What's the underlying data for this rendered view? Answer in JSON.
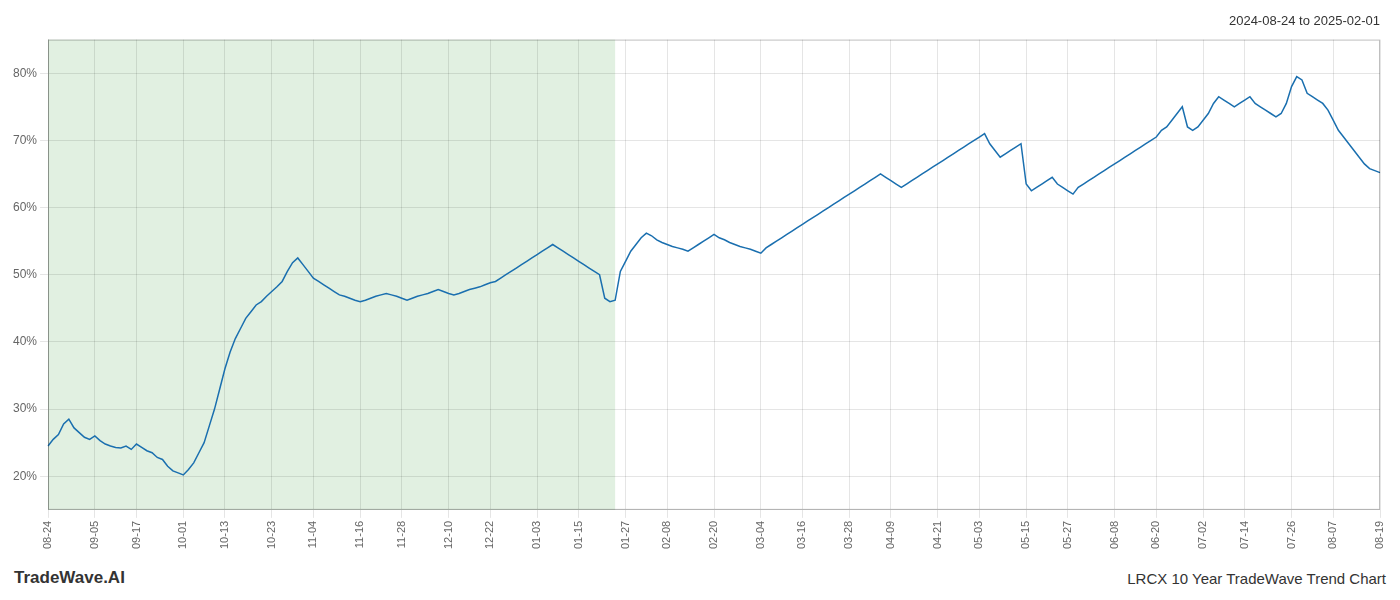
{
  "chart_data": {
    "type": "line",
    "title": "LRCX 10 Year TradeWave Trend Chart",
    "subtitle": "2024-08-24 to 2025-02-01",
    "annotations": [
      "TradeWave.AI"
    ],
    "color": "#1a6faf",
    "grid": true,
    "ylim": [
      15,
      85
    ],
    "yticks": [
      {
        "value": 20,
        "label": "20%"
      },
      {
        "value": 30,
        "label": "30%"
      },
      {
        "value": 40,
        "label": "40%"
      },
      {
        "value": 50,
        "label": "50%"
      },
      {
        "value": 60,
        "label": "60%"
      },
      {
        "value": 70,
        "label": "70%"
      },
      {
        "value": 80,
        "label": "80%"
      }
    ],
    "shaded_region": {
      "from": 0,
      "to": 109,
      "color": "#d4ead4"
    },
    "categories": [
      "08-24",
      null,
      null,
      null,
      null,
      null,
      null,
      null,
      null,
      "09-05",
      null,
      null,
      null,
      null,
      null,
      null,
      null,
      "09-17",
      null,
      null,
      null,
      null,
      null,
      null,
      null,
      null,
      "10-01",
      null,
      null,
      null,
      null,
      null,
      null,
      null,
      "10-13",
      null,
      null,
      null,
      null,
      null,
      null,
      null,
      null,
      "10-23",
      null,
      null,
      null,
      null,
      null,
      null,
      null,
      "11-04",
      null,
      null,
      null,
      null,
      null,
      null,
      null,
      null,
      "11-16",
      null,
      null,
      null,
      null,
      null,
      null,
      null,
      "11-28",
      null,
      null,
      null,
      null,
      null,
      null,
      null,
      null,
      "12-10",
      null,
      null,
      null,
      null,
      null,
      null,
      null,
      "12-22",
      null,
      null,
      null,
      null,
      null,
      null,
      null,
      null,
      "01-03",
      null,
      null,
      null,
      null,
      null,
      null,
      null,
      "01-15",
      null,
      null,
      null,
      null,
      null,
      null,
      null,
      null,
      "01-27",
      null,
      null,
      null,
      null,
      null,
      null,
      null,
      "02-08",
      null,
      null,
      null,
      null,
      null,
      null,
      null,
      null,
      "02-20",
      null,
      null,
      null,
      null,
      null,
      null,
      null,
      null,
      "03-04",
      null,
      null,
      null,
      null,
      null,
      null,
      null,
      "03-16",
      null,
      null,
      null,
      null,
      null,
      null,
      null,
      null,
      "03-28",
      null,
      null,
      null,
      null,
      null,
      null,
      null,
      "04-09",
      null,
      null,
      null,
      null,
      null,
      null,
      null,
      null,
      "04-21",
      null,
      null,
      null,
      null,
      null,
      null,
      null,
      "05-03",
      null,
      null,
      null,
      null,
      null,
      null,
      null,
      null,
      "05-15",
      null,
      null,
      null,
      null,
      null,
      null,
      null,
      "05-27",
      null,
      null,
      null,
      null,
      null,
      null,
      null,
      null,
      "06-08",
      null,
      null,
      null,
      null,
      null,
      null,
      null,
      "06-20",
      null,
      null,
      null,
      null,
      null,
      null,
      null,
      null,
      "07-02",
      null,
      null,
      null,
      null,
      null,
      null,
      null,
      "07-14",
      null,
      null,
      null,
      null,
      null,
      null,
      null,
      null,
      "07-26",
      null,
      null,
      null,
      null,
      null,
      null,
      null,
      "08-07",
      null,
      null,
      null,
      null,
      null,
      null,
      null,
      null,
      "08-19"
    ],
    "values": [
      24.5,
      25.5,
      26.2,
      27.8,
      28.5,
      27.2,
      26.5,
      25.8,
      25.5,
      26.0,
      25.3,
      24.8,
      24.5,
      24.3,
      24.2,
      24.5,
      24.0,
      24.8,
      24.3,
      23.8,
      23.5,
      22.8,
      22.5,
      21.5,
      20.8,
      20.5,
      20.2,
      21.0,
      22.0,
      23.5,
      25.0,
      27.5,
      30.0,
      33.0,
      36.0,
      38.5,
      40.5,
      42.0,
      43.5,
      44.5,
      45.5,
      46.0,
      46.8,
      47.5,
      48.2,
      49.0,
      50.5,
      51.8,
      52.5,
      51.5,
      50.5,
      49.5,
      49.0,
      48.5,
      48.0,
      47.5,
      47.0,
      46.8,
      46.5,
      46.2,
      46.0,
      46.2,
      46.5,
      46.8,
      47.0,
      47.2,
      47.0,
      46.8,
      46.5,
      46.2,
      46.5,
      46.8,
      47.0,
      47.2,
      47.5,
      47.8,
      47.5,
      47.2,
      47.0,
      47.2,
      47.5,
      47.8,
      48.0,
      48.2,
      48.5,
      48.8,
      49.0,
      49.5,
      50.0,
      50.5,
      51.0,
      51.5,
      52.0,
      52.5,
      53.0,
      53.5,
      54.0,
      54.5,
      54.0,
      53.5,
      53.0,
      52.5,
      52.0,
      51.5,
      51.0,
      50.5,
      50.0,
      46.5,
      46.0,
      46.2,
      50.5,
      52.0,
      53.5,
      54.5,
      55.5,
      56.2,
      55.8,
      55.2,
      54.8,
      54.5,
      54.2,
      54.0,
      53.8,
      53.5,
      54.0,
      54.5,
      55.0,
      55.5,
      56.0,
      55.5,
      55.2,
      54.8,
      54.5,
      54.2,
      54.0,
      53.8,
      53.5,
      53.2,
      54.0,
      54.5,
      55.0,
      55.5,
      56.0,
      56.5,
      57.0,
      57.5,
      58.0,
      58.5,
      59.0,
      59.5,
      60.0,
      60.5,
      61.0,
      61.5,
      62.0,
      62.5,
      63.0,
      63.5,
      64.0,
      64.5,
      65.0,
      64.5,
      64.0,
      63.5,
      63.0,
      63.5,
      64.0,
      64.5,
      65.0,
      65.5,
      66.0,
      66.5,
      67.0,
      67.5,
      68.0,
      68.5,
      69.0,
      69.5,
      70.0,
      70.5,
      71.0,
      69.5,
      68.5,
      67.5,
      68.0,
      68.5,
      69.0,
      69.5,
      63.5,
      62.5,
      63.0,
      63.5,
      64.0,
      64.5,
      63.5,
      63.0,
      62.5,
      62.0,
      63.0,
      63.5,
      64.0,
      64.5,
      65.0,
      65.5,
      66.0,
      66.5,
      67.0,
      67.5,
      68.0,
      68.5,
      69.0,
      69.5,
      70.0,
      70.5,
      71.5,
      72.0,
      73.0,
      74.0,
      75.0,
      72.0,
      71.5,
      72.0,
      73.0,
      74.0,
      75.5,
      76.5,
      76.0,
      75.5,
      75.0,
      75.5,
      76.0,
      76.5,
      75.5,
      75.0,
      74.5,
      74.0,
      73.5,
      74.0,
      75.5,
      78.0,
      79.5,
      79.0,
      77.0,
      76.5,
      76.0,
      75.5,
      74.5,
      73.0,
      71.5,
      70.5,
      69.5,
      68.5,
      67.5,
      66.5,
      65.8,
      65.5,
      65.2
    ]
  }
}
